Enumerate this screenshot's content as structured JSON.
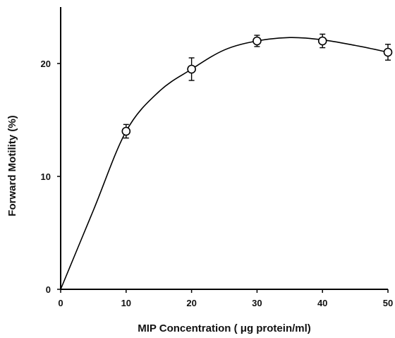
{
  "chart_data": {
    "type": "scatter",
    "title": "",
    "xlabel": "MIP Concentration ( μg protein/ml)",
    "ylabel": "Forward Motility (%)",
    "xlim": [
      0,
      50
    ],
    "ylim": [
      0,
      25
    ],
    "xticks": [
      0,
      10,
      20,
      30,
      40,
      50
    ],
    "yticks": [
      0,
      10,
      20
    ],
    "grid": false,
    "legend": "none",
    "series": [
      {
        "marker": "open-circle",
        "x": [
          10,
          20,
          30,
          40,
          50
        ],
        "y": [
          14.0,
          19.5,
          22.0,
          22.0,
          21.0
        ],
        "error": [
          0.6,
          1.0,
          0.5,
          0.6,
          0.7
        ]
      }
    ],
    "fit_curve": {
      "x": [
        0,
        5,
        10,
        15,
        20,
        25,
        30,
        35,
        40,
        45,
        50
      ],
      "y": [
        0,
        7.0,
        14.0,
        17.5,
        19.5,
        21.2,
        22.0,
        22.3,
        22.1,
        21.6,
        21.0
      ]
    }
  }
}
